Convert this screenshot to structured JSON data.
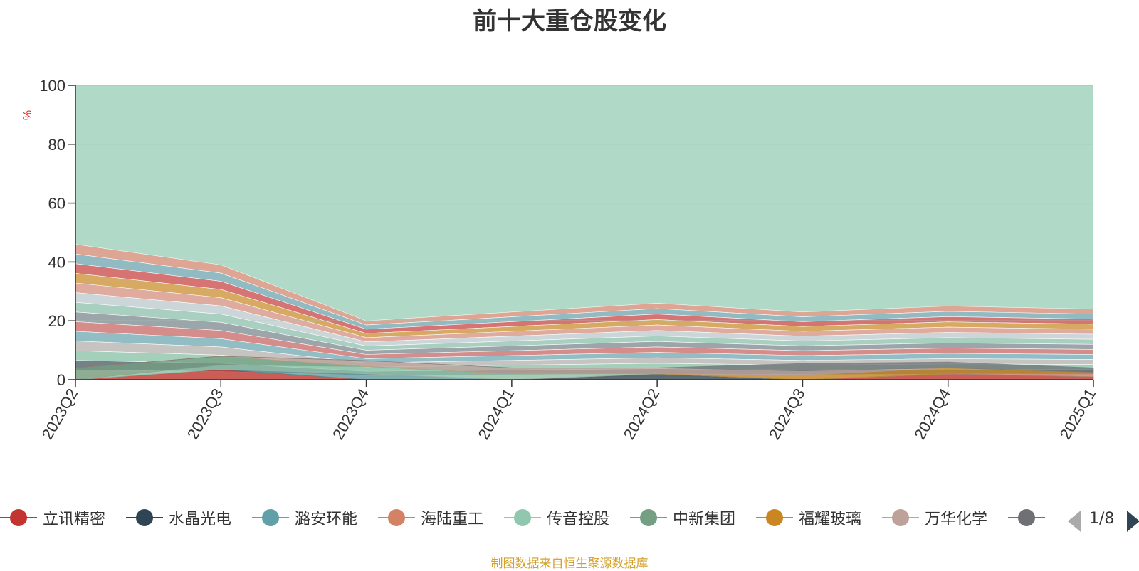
{
  "chart_data": {
    "type": "area",
    "title": "前十大重仓股变化",
    "ylabel": "%",
    "ylim": [
      0,
      100
    ],
    "yticks": [
      0,
      20,
      40,
      60,
      80,
      100
    ],
    "grid": true,
    "stacked": true,
    "categories": [
      "2023Q2",
      "2023Q3",
      "2023Q4",
      "2024Q1",
      "2024Q2",
      "2024Q3",
      "2024Q4",
      "2025Q1"
    ],
    "background_area_color": "#b1d9c7",
    "series": [
      {
        "name": "立讯精密",
        "color": "#c23531",
        "values": [
          0,
          3.5,
          0,
          0,
          0,
          0,
          2,
          1
        ]
      },
      {
        "name": "水晶光电",
        "color": "#2f4554",
        "values": [
          0,
          0,
          0,
          0,
          2,
          0,
          0,
          0
        ]
      },
      {
        "name": "潞安环能",
        "color": "#61a0a8",
        "values": [
          0,
          0,
          2,
          0,
          0,
          0,
          0,
          0
        ]
      },
      {
        "name": "海陆重工",
        "color": "#d48265",
        "values": [
          0,
          0,
          0,
          0,
          0,
          0,
          0,
          1.5
        ]
      },
      {
        "name": "传音控股",
        "color": "#91c7ae",
        "values": [
          0,
          1.5,
          2.5,
          2,
          0,
          0,
          0,
          0
        ]
      },
      {
        "name": "中新集团",
        "color": "#749f83",
        "values": [
          4,
          3,
          0,
          0,
          0,
          0,
          0,
          0
        ]
      },
      {
        "name": "福耀玻璃",
        "color": "#ca8622",
        "values": [
          0,
          0,
          0,
          0,
          0,
          1.5,
          2,
          0
        ]
      },
      {
        "name": "万华化学",
        "color": "#bda29a",
        "values": [
          0,
          0,
          2,
          2,
          2,
          1.5,
          0,
          0
        ]
      },
      {
        "name": "",
        "color": "#6e7074",
        "values": [
          0,
          0,
          0,
          0,
          0,
          2.5,
          2,
          1.5
        ]
      }
    ],
    "legend_position": "bottom",
    "legend_page": "1/8"
  },
  "source_note": "制图数据来自恒生聚源数据库",
  "colors": {
    "title": "#333333",
    "axis": "#333333",
    "grid": "#9fc8b5",
    "ylabel": "#e03030",
    "source": "#d4a12a",
    "legend_text": "#333333"
  }
}
